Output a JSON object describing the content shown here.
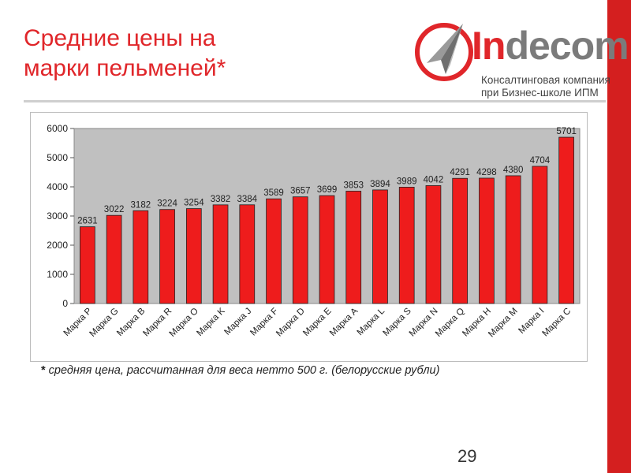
{
  "slide": {
    "title_lines": [
      "Средние цены на",
      "марки пельменей*"
    ],
    "footnote_marker": "*",
    "footnote": " средняя цена, рассчитанная для веса нетто 500 г. (белорусские рубли)",
    "page_number": "29"
  },
  "logo": {
    "name_first": "In",
    "name_rest": "decom",
    "subtitle_lines": [
      "Консалтинговая компания",
      "при Бизнес-школе ИПМ"
    ],
    "icon": "paper-plane-in-circle-icon"
  },
  "colors": {
    "accent": "#e0262a",
    "bar_fill": "#ee1c1c",
    "plot_background": "#c0c0c0",
    "right_bar": "#d41f1f"
  },
  "chart_data": {
    "type": "bar",
    "title": "",
    "xlabel": "",
    "ylabel": "",
    "ylim": [
      0,
      6000
    ],
    "yticks": [
      0,
      1000,
      2000,
      3000,
      4000,
      5000,
      6000
    ],
    "grid": false,
    "legend": "none",
    "categories": [
      "Марка P",
      "Марка G",
      "Марка B",
      "Марка R",
      "Марка O",
      "Марка K",
      "Марка J",
      "Марка F",
      "Марка D",
      "Марка E",
      "Марка A",
      "Марка L",
      "Марка S",
      "Марка N",
      "Марка Q",
      "Марка H",
      "Марка M",
      "Марка I",
      "Марка C"
    ],
    "values": [
      2631,
      3022,
      3182,
      3224,
      3254,
      3382,
      3384,
      3589,
      3657,
      3699,
      3853,
      3894,
      3989,
      4042,
      4291,
      4298,
      4380,
      4704,
      5701
    ]
  }
}
